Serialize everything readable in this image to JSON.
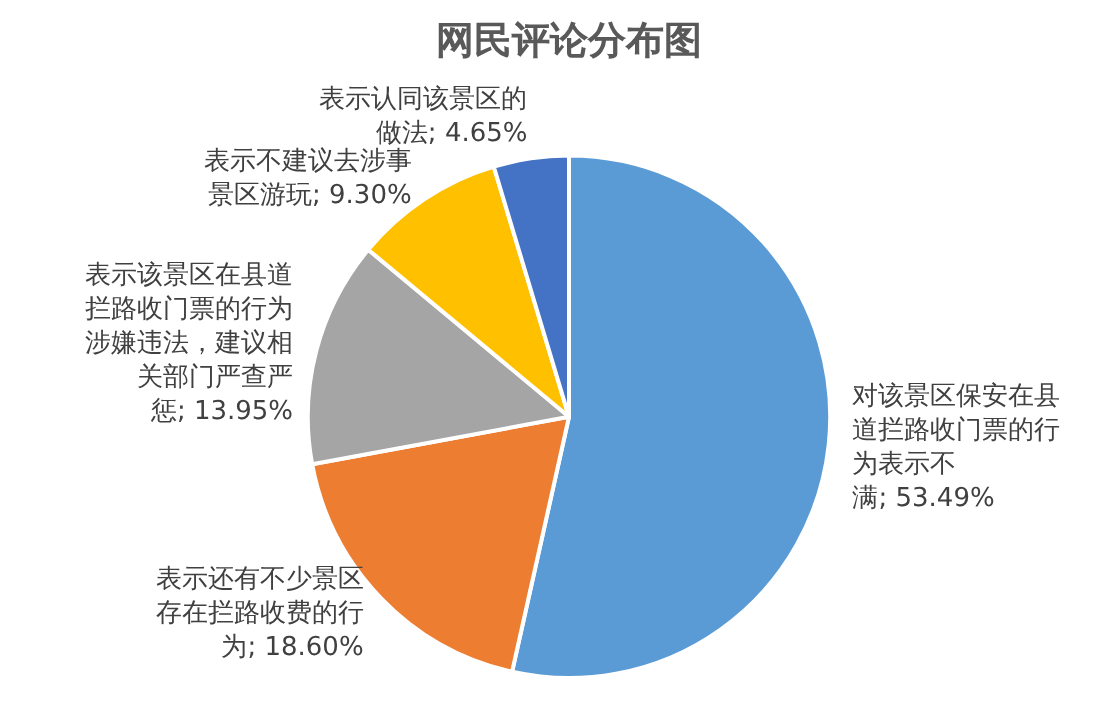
{
  "chart_data": {
    "type": "pie",
    "title": "网民评论分布图",
    "categories": [
      "对该景区保安在县道拦路收门票的行为表示不满",
      "表示还有不少景区存在拦路收费的行为",
      "表示该景区在县道拦路收门票的行为涉嫌违法，建议相关部门严查严惩",
      "表示不建议去涉事景区游玩",
      "表示认同该景区的做法"
    ],
    "values": [
      53.49,
      18.6,
      13.95,
      9.3,
      4.65
    ],
    "value_labels": [
      "53.49%",
      "18.60%",
      "13.95%",
      "9.30%",
      "4.65%"
    ],
    "colors": [
      "#5b9bd5",
      "#ed7d31",
      "#a5a5a5",
      "#ffc000",
      "#4472c4"
    ],
    "legend": false
  }
}
